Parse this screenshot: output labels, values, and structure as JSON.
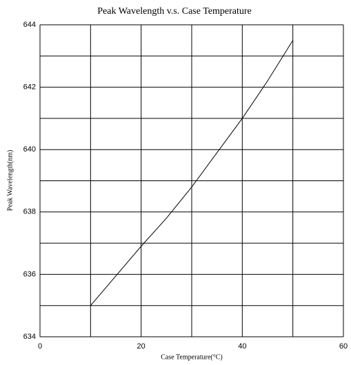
{
  "chart_data": {
    "type": "line",
    "title": "Peak Wavelength v.s. Case Temperature",
    "x_label": "Case Temperature(°C)",
    "y_label": "Peak Wavelength(nm)",
    "x": [
      10,
      20,
      25,
      30,
      35,
      40,
      45,
      50
    ],
    "series": [
      {
        "color": "#000000",
        "values": [
          635,
          636.9,
          637.8,
          638.8,
          639.9,
          641,
          642.2,
          643.5
        ]
      }
    ],
    "xlim": [
      0,
      60
    ],
    "ylim": [
      634,
      644
    ],
    "xticks": [
      0,
      20,
      40,
      60
    ],
    "yticks": [
      634,
      636,
      638,
      640,
      642,
      644
    ],
    "xgrid": [
      0,
      10,
      20,
      30,
      40,
      50,
      60
    ],
    "ygrid": [
      634,
      635,
      636,
      637,
      638,
      639,
      640,
      641,
      642,
      643,
      644
    ],
    "grid": true
  }
}
